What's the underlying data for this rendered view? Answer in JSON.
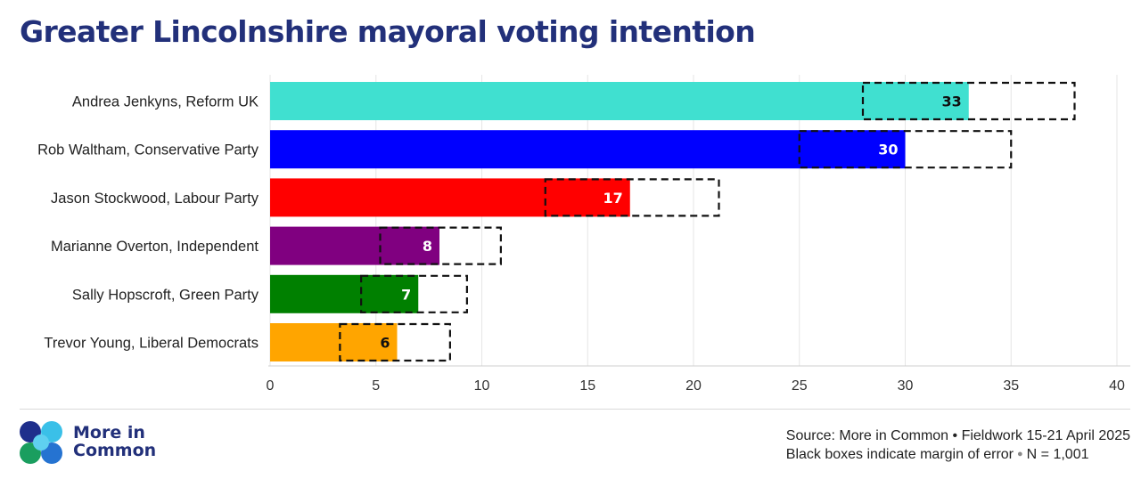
{
  "chart_data": {
    "type": "bar",
    "orientation": "horizontal",
    "title": "Greater Lincolnshire mayoral voting intention",
    "categories": [
      "Andrea Jenkyns, Reform UK",
      "Rob Waltham, Conservative Party",
      "Jason Stockwood, Labour Party",
      "Marianne Overton, Independent",
      "Sally Hopscroft, Green Party",
      "Trevor Young, Liberal Democrats"
    ],
    "values": [
      33,
      30,
      17,
      8,
      7,
      6
    ],
    "value_labels": [
      "33",
      "30",
      "17",
      "8",
      "7",
      "6"
    ],
    "margin_of_error": [
      [
        28,
        38
      ],
      [
        25,
        35
      ],
      [
        13,
        21.2
      ],
      [
        5.2,
        10.9
      ],
      [
        4.3,
        9.3
      ],
      [
        3.3,
        8.5
      ]
    ],
    "colors": [
      "#40e0d0",
      "#0000ff",
      "#ff0000",
      "#800080",
      "#008000",
      "#ffa500"
    ],
    "label_colors": [
      "#111111",
      "#ffffff",
      "#ffffff",
      "#ffffff",
      "#ffffff",
      "#111111"
    ],
    "xlim": [
      0,
      40
    ],
    "xticks": [
      "0",
      "5",
      "10",
      "15",
      "20",
      "25",
      "30",
      "35",
      "40"
    ],
    "xlabel": "",
    "ylabel": "",
    "grid": true
  },
  "logo": {
    "line1": "More in",
    "line2": "Common",
    "colors": [
      "#1f2f8c",
      "#3ac0e8",
      "#1a9e5f",
      "#2573d1"
    ]
  },
  "footer": {
    "source": "Source: More in Common • Fieldwork 15-21 April 2025",
    "note": "Black boxes indicate margin of error",
    "sample": "N = 1,001"
  }
}
